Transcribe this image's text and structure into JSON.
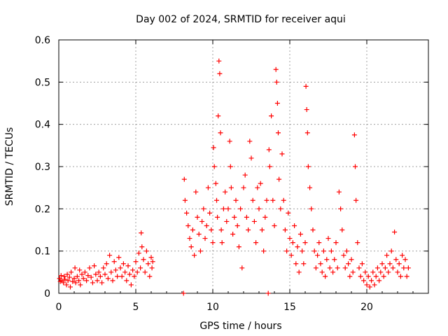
{
  "chart_data": {
    "type": "scatter",
    "title": "Day 002 of 2024, SRMTID for receiver aqui",
    "xlabel": "GPS time / hours",
    "ylabel": "SRMTID / TECUs",
    "xlim": [
      0,
      24
    ],
    "ylim": [
      0,
      0.6
    ],
    "x_ticks": [
      0,
      5,
      10,
      15,
      20
    ],
    "y_ticks": [
      0,
      0.1,
      0.2,
      0.3,
      0.4,
      0.5,
      0.6
    ],
    "x_tick_labels": [
      "0",
      "5",
      "10",
      "15",
      "20"
    ],
    "y_tick_labels": [
      "0",
      "0.1",
      "0.2",
      "0.3",
      "0.4",
      "0.5",
      "0.6"
    ],
    "grid": true,
    "marker": "+",
    "color": "#ff0000",
    "series": [
      {
        "name": "SRMTID",
        "points": [
          [
            0.05,
            0.035
          ],
          [
            0.1,
            0.028
          ],
          [
            0.15,
            0.042
          ],
          [
            0.2,
            0.03
          ],
          [
            0.3,
            0.025
          ],
          [
            0.35,
            0.04
          ],
          [
            0.4,
            0.033
          ],
          [
            0.5,
            0.02
          ],
          [
            0.55,
            0.045
          ],
          [
            0.6,
            0.03
          ],
          [
            0.7,
            0.038
          ],
          [
            0.75,
            0.015
          ],
          [
            0.8,
            0.05
          ],
          [
            0.9,
            0.028
          ],
          [
            1.0,
            0.035
          ],
          [
            1.05,
            0.06
          ],
          [
            1.1,
            0.025
          ],
          [
            1.2,
            0.04
          ],
          [
            1.3,
            0.03
          ],
          [
            1.35,
            0.055
          ],
          [
            1.4,
            0.02
          ],
          [
            1.5,
            0.045
          ],
          [
            1.6,
            0.035
          ],
          [
            1.7,
            0.05
          ],
          [
            1.8,
            0.03
          ],
          [
            1.9,
            0.042
          ],
          [
            2.0,
            0.06
          ],
          [
            2.1,
            0.038
          ],
          [
            2.2,
            0.025
          ],
          [
            2.3,
            0.065
          ],
          [
            2.4,
            0.045
          ],
          [
            2.5,
            0.03
          ],
          [
            2.6,
            0.05
          ],
          [
            2.7,
            0.04
          ],
          [
            2.8,
            0.025
          ],
          [
            2.9,
            0.06
          ],
          [
            3.0,
            0.045
          ],
          [
            3.1,
            0.07
          ],
          [
            3.2,
            0.035
          ],
          [
            3.3,
            0.09
          ],
          [
            3.4,
            0.05
          ],
          [
            3.5,
            0.03
          ],
          [
            3.6,
            0.075
          ],
          [
            3.7,
            0.055
          ],
          [
            3.8,
            0.04
          ],
          [
            3.9,
            0.085
          ],
          [
            4.0,
            0.06
          ],
          [
            4.1,
            0.04
          ],
          [
            4.2,
            0.07
          ],
          [
            4.3,
            0.05
          ],
          [
            4.4,
            0.03
          ],
          [
            4.5,
            0.065
          ],
          [
            4.6,
            0.045
          ],
          [
            4.7,
            0.02
          ],
          [
            4.8,
            0.055
          ],
          [
            4.9,
            0.04
          ],
          [
            5.0,
            0.075
          ],
          [
            5.1,
            0.05
          ],
          [
            5.2,
            0.095
          ],
          [
            5.3,
            0.06
          ],
          [
            5.35,
            0.143
          ],
          [
            5.4,
            0.11
          ],
          [
            5.5,
            0.08
          ],
          [
            5.6,
            0.05
          ],
          [
            5.7,
            0.1
          ],
          [
            5.8,
            0.07
          ],
          [
            5.9,
            0.04
          ],
          [
            6.0,
            0.085
          ],
          [
            6.05,
            0.06
          ],
          [
            6.1,
            0.075
          ],
          [
            8.1,
            0.0
          ],
          [
            8.15,
            0.27
          ],
          [
            8.2,
            0.22
          ],
          [
            8.3,
            0.19
          ],
          [
            8.4,
            0.16
          ],
          [
            8.5,
            0.13
          ],
          [
            8.6,
            0.11
          ],
          [
            8.7,
            0.15
          ],
          [
            8.8,
            0.09
          ],
          [
            8.9,
            0.24
          ],
          [
            9.0,
            0.18
          ],
          [
            9.1,
            0.14
          ],
          [
            9.2,
            0.1
          ],
          [
            9.3,
            0.17
          ],
          [
            9.4,
            0.2
          ],
          [
            9.5,
            0.13
          ],
          [
            9.6,
            0.16
          ],
          [
            9.7,
            0.25
          ],
          [
            9.8,
            0.19
          ],
          [
            9.9,
            0.15
          ],
          [
            10.0,
            0.12
          ],
          [
            10.05,
            0.345
          ],
          [
            10.1,
            0.3
          ],
          [
            10.2,
            0.26
          ],
          [
            10.25,
            0.22
          ],
          [
            10.3,
            0.18
          ],
          [
            10.35,
            0.42
          ],
          [
            10.4,
            0.55
          ],
          [
            10.45,
            0.52
          ],
          [
            10.5,
            0.38
          ],
          [
            10.55,
            0.15
          ],
          [
            10.6,
            0.12
          ],
          [
            10.7,
            0.2
          ],
          [
            10.8,
            0.24
          ],
          [
            10.9,
            0.17
          ],
          [
            11.0,
            0.2
          ],
          [
            11.1,
            0.36
          ],
          [
            11.15,
            0.3
          ],
          [
            11.2,
            0.25
          ],
          [
            11.3,
            0.14
          ],
          [
            11.4,
            0.18
          ],
          [
            11.5,
            0.22
          ],
          [
            11.6,
            0.16
          ],
          [
            11.7,
            0.11
          ],
          [
            11.8,
            0.2
          ],
          [
            11.9,
            0.06
          ],
          [
            12.0,
            0.25
          ],
          [
            12.1,
            0.28
          ],
          [
            12.2,
            0.18
          ],
          [
            12.3,
            0.15
          ],
          [
            12.4,
            0.36
          ],
          [
            12.5,
            0.32
          ],
          [
            12.6,
            0.22
          ],
          [
            12.7,
            0.17
          ],
          [
            12.8,
            0.12
          ],
          [
            12.9,
            0.25
          ],
          [
            13.0,
            0.2
          ],
          [
            13.1,
            0.26
          ],
          [
            13.2,
            0.15
          ],
          [
            13.3,
            0.1
          ],
          [
            13.4,
            0.18
          ],
          [
            13.5,
            0.22
          ],
          [
            13.6,
            0.0
          ],
          [
            13.65,
            0.34
          ],
          [
            13.7,
            0.3
          ],
          [
            13.8,
            0.42
          ],
          [
            13.9,
            0.22
          ],
          [
            14.0,
            0.16
          ],
          [
            14.1,
            0.53
          ],
          [
            14.15,
            0.5
          ],
          [
            14.2,
            0.45
          ],
          [
            14.25,
            0.38
          ],
          [
            14.3,
            0.27
          ],
          [
            14.4,
            0.2
          ],
          [
            14.5,
            0.33
          ],
          [
            14.6,
            0.22
          ],
          [
            14.7,
            0.15
          ],
          [
            14.8,
            0.1
          ],
          [
            14.9,
            0.19
          ],
          [
            15.0,
            0.13
          ],
          [
            15.1,
            0.09
          ],
          [
            15.2,
            0.12
          ],
          [
            15.3,
            0.16
          ],
          [
            15.4,
            0.07
          ],
          [
            15.5,
            0.11
          ],
          [
            15.6,
            0.05
          ],
          [
            15.7,
            0.14
          ],
          [
            15.8,
            0.1
          ],
          [
            15.9,
            0.07
          ],
          [
            16.0,
            0.12
          ],
          [
            16.05,
            0.49
          ],
          [
            16.1,
            0.435
          ],
          [
            16.15,
            0.38
          ],
          [
            16.2,
            0.3
          ],
          [
            16.3,
            0.25
          ],
          [
            16.4,
            0.2
          ],
          [
            16.5,
            0.15
          ],
          [
            16.6,
            0.1
          ],
          [
            16.7,
            0.06
          ],
          [
            16.8,
            0.09
          ],
          [
            16.9,
            0.12
          ],
          [
            17.0,
            0.07
          ],
          [
            17.1,
            0.05
          ],
          [
            17.2,
            0.1
          ],
          [
            17.3,
            0.04
          ],
          [
            17.4,
            0.08
          ],
          [
            17.5,
            0.13
          ],
          [
            17.6,
            0.06
          ],
          [
            17.7,
            0.1
          ],
          [
            17.8,
            0.05
          ],
          [
            17.9,
            0.08
          ],
          [
            18.0,
            0.12
          ],
          [
            18.1,
            0.06
          ],
          [
            18.2,
            0.24
          ],
          [
            18.3,
            0.2
          ],
          [
            18.4,
            0.15
          ],
          [
            18.5,
            0.09
          ],
          [
            18.6,
            0.06
          ],
          [
            18.7,
            0.1
          ],
          [
            18.8,
            0.07
          ],
          [
            18.9,
            0.04
          ],
          [
            19.0,
            0.08
          ],
          [
            19.1,
            0.05
          ],
          [
            19.2,
            0.375
          ],
          [
            19.25,
            0.3
          ],
          [
            19.3,
            0.22
          ],
          [
            19.4,
            0.12
          ],
          [
            19.5,
            0.06
          ],
          [
            19.6,
            0.04
          ],
          [
            19.7,
            0.07
          ],
          [
            19.8,
            0.03
          ],
          [
            19.9,
            0.05
          ],
          [
            20.0,
            0.02
          ],
          [
            20.1,
            0.04
          ],
          [
            20.2,
            0.015
          ],
          [
            20.3,
            0.03
          ],
          [
            20.4,
            0.05
          ],
          [
            20.5,
            0.02
          ],
          [
            20.6,
            0.04
          ],
          [
            20.7,
            0.06
          ],
          [
            20.8,
            0.03
          ],
          [
            20.9,
            0.05
          ],
          [
            21.0,
            0.07
          ],
          [
            21.1,
            0.04
          ],
          [
            21.2,
            0.06
          ],
          [
            21.3,
            0.09
          ],
          [
            21.4,
            0.05
          ],
          [
            21.5,
            0.07
          ],
          [
            21.6,
            0.1
          ],
          [
            21.7,
            0.06
          ],
          [
            21.8,
            0.145
          ],
          [
            21.9,
            0.08
          ],
          [
            22.0,
            0.05
          ],
          [
            22.1,
            0.07
          ],
          [
            22.2,
            0.04
          ],
          [
            22.3,
            0.09
          ],
          [
            22.4,
            0.06
          ],
          [
            22.5,
            0.08
          ],
          [
            22.6,
            0.04
          ],
          [
            22.7,
            0.06
          ]
        ]
      }
    ]
  }
}
